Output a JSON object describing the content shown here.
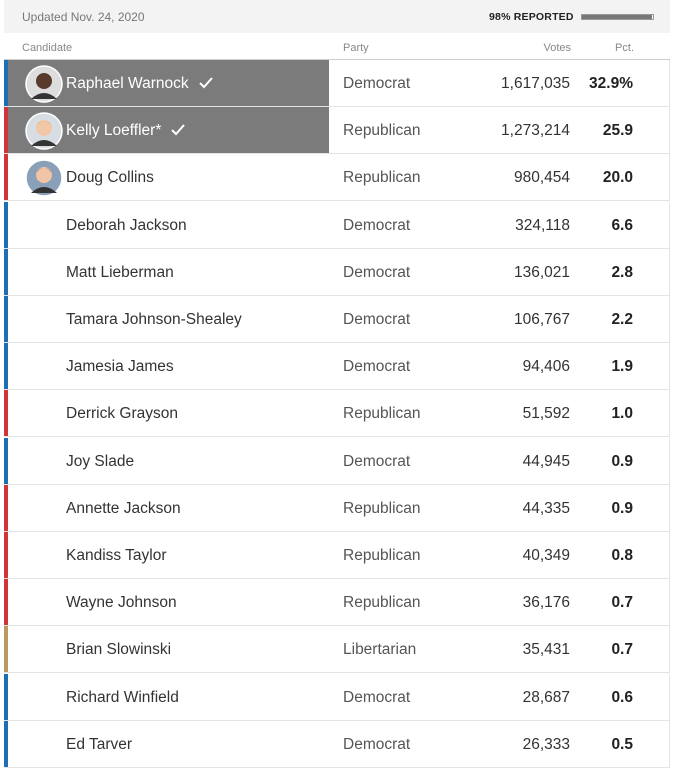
{
  "header": {
    "updated": "Updated Nov. 24, 2020",
    "reported": {
      "value": 98,
      "label": "98% REPORTED"
    }
  },
  "columns": [
    "Candidate",
    "Party",
    "Votes",
    "Pct."
  ],
  "rows": [
    {
      "candidate": "Raphael Warnock",
      "party": "Democrat",
      "votes": "1,617,035",
      "pct": "32.9%",
      "color": "#1c6eb5",
      "winner": true,
      "photo": true
    },
    {
      "candidate": "Kelly Loeffler*",
      "party": "Republican",
      "votes": "1,273,214",
      "pct": "25.9",
      "color": "#d2343b",
      "winner": true,
      "photo": true
    },
    {
      "candidate": "Doug Collins",
      "party": "Republican",
      "votes": "980,454",
      "pct": "20.0",
      "color": "#d2343b",
      "winner": false,
      "photo": true
    },
    {
      "candidate": "Deborah Jackson",
      "party": "Democrat",
      "votes": "324,118",
      "pct": "6.6",
      "color": "#1c6eb5",
      "winner": false,
      "photo": false
    },
    {
      "candidate": "Matt Lieberman",
      "party": "Democrat",
      "votes": "136,021",
      "pct": "2.8",
      "color": "#1c6eb5",
      "winner": false,
      "photo": false
    },
    {
      "candidate": "Tamara Johnson-Shealey",
      "party": "Democrat",
      "votes": "106,767",
      "pct": "2.2",
      "color": "#1c6eb5",
      "winner": false,
      "photo": false
    },
    {
      "candidate": "Jamesia James",
      "party": "Democrat",
      "votes": "94,406",
      "pct": "1.9",
      "color": "#1c6eb5",
      "winner": false,
      "photo": false
    },
    {
      "candidate": "Derrick Grayson",
      "party": "Republican",
      "votes": "51,592",
      "pct": "1.0",
      "color": "#d2343b",
      "winner": false,
      "photo": false
    },
    {
      "candidate": "Joy Slade",
      "party": "Democrat",
      "votes": "44,945",
      "pct": "0.9",
      "color": "#1c6eb5",
      "winner": false,
      "photo": false
    },
    {
      "candidate": "Annette Jackson",
      "party": "Republican",
      "votes": "44,335",
      "pct": "0.9",
      "color": "#d2343b",
      "winner": false,
      "photo": false
    },
    {
      "candidate": "Kandiss Taylor",
      "party": "Republican",
      "votes": "40,349",
      "pct": "0.8",
      "color": "#d2343b",
      "winner": false,
      "photo": false
    },
    {
      "candidate": "Wayne Johnson",
      "party": "Republican",
      "votes": "36,176",
      "pct": "0.7",
      "color": "#d2343b",
      "winner": false,
      "photo": false
    },
    {
      "candidate": "Brian Slowinski",
      "party": "Libertarian",
      "votes": "35,431",
      "pct": "0.7",
      "color": "#b89a62",
      "winner": false,
      "photo": false
    },
    {
      "candidate": "Richard Winfield",
      "party": "Democrat",
      "votes": "28,687",
      "pct": "0.6",
      "color": "#1c6eb5",
      "winner": false,
      "photo": false
    },
    {
      "candidate": "Ed Tarver",
      "party": "Democrat",
      "votes": "26,333",
      "pct": "0.5",
      "color": "#1c6eb5",
      "winner": false,
      "photo": false
    }
  ]
}
